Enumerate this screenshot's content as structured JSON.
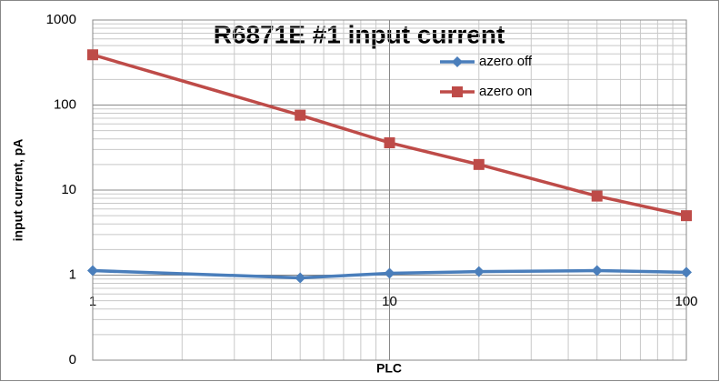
{
  "chart_data": {
    "type": "line",
    "title": "R6871E #1 input current",
    "x_label": "PLC",
    "y_label": "input current, pA",
    "x": [
      1,
      5,
      10,
      20,
      50,
      100
    ],
    "series": [
      {
        "name": "azero off",
        "color": "#4a7ebb",
        "marker": "diamond",
        "values": [
          1.13,
          0.93,
          1.05,
          1.1,
          1.13,
          1.08
        ]
      },
      {
        "name": "azero on",
        "color": "#be4b48",
        "marker": "square",
        "values": [
          390,
          76,
          36,
          20,
          8.5,
          5
        ]
      }
    ],
    "xlim": [
      1,
      100
    ],
    "xticks": [
      1,
      10,
      100
    ],
    "ylim": [
      0.1,
      1000
    ],
    "yticks": [
      {
        "value": 0.1,
        "label": "0"
      },
      1,
      10,
      100,
      1000
    ],
    "log_x": true,
    "log_y": true,
    "grid": true,
    "minor_grid": true,
    "legend": "top-right"
  }
}
